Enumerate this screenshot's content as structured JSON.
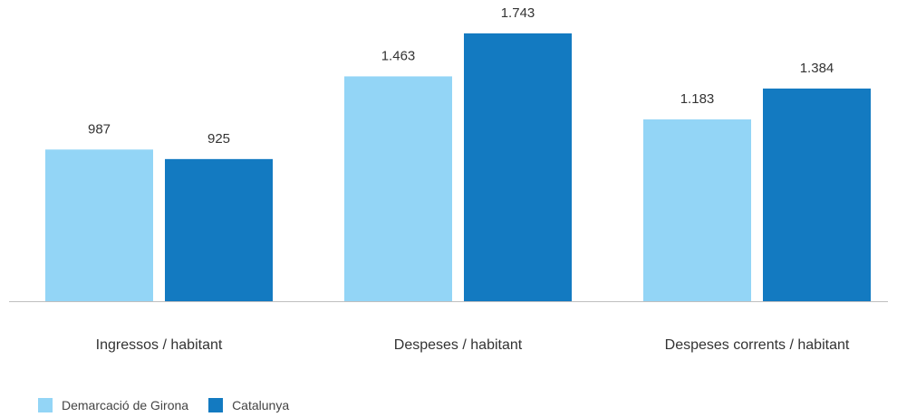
{
  "chart_data": {
    "type": "bar",
    "categories": [
      "Ingressos / habitant",
      "Despeses / habitant",
      "Despeses corrents / habitant"
    ],
    "series": [
      {
        "name": "Demarcació de Girona",
        "values": [
          987,
          1463,
          1183
        ],
        "value_labels": [
          "987",
          "1.463",
          "1.183"
        ],
        "color": "#93d5f6"
      },
      {
        "name": "Catalunya",
        "values": [
          925,
          1743,
          1384
        ],
        "value_labels": [
          "925",
          "1.743",
          "1.384"
        ],
        "color": "#137ac1"
      }
    ],
    "ylim": [
      0,
      1960
    ],
    "grid": false,
    "legend_position": "bottom-left",
    "axis_color": "#bfbfbf"
  }
}
